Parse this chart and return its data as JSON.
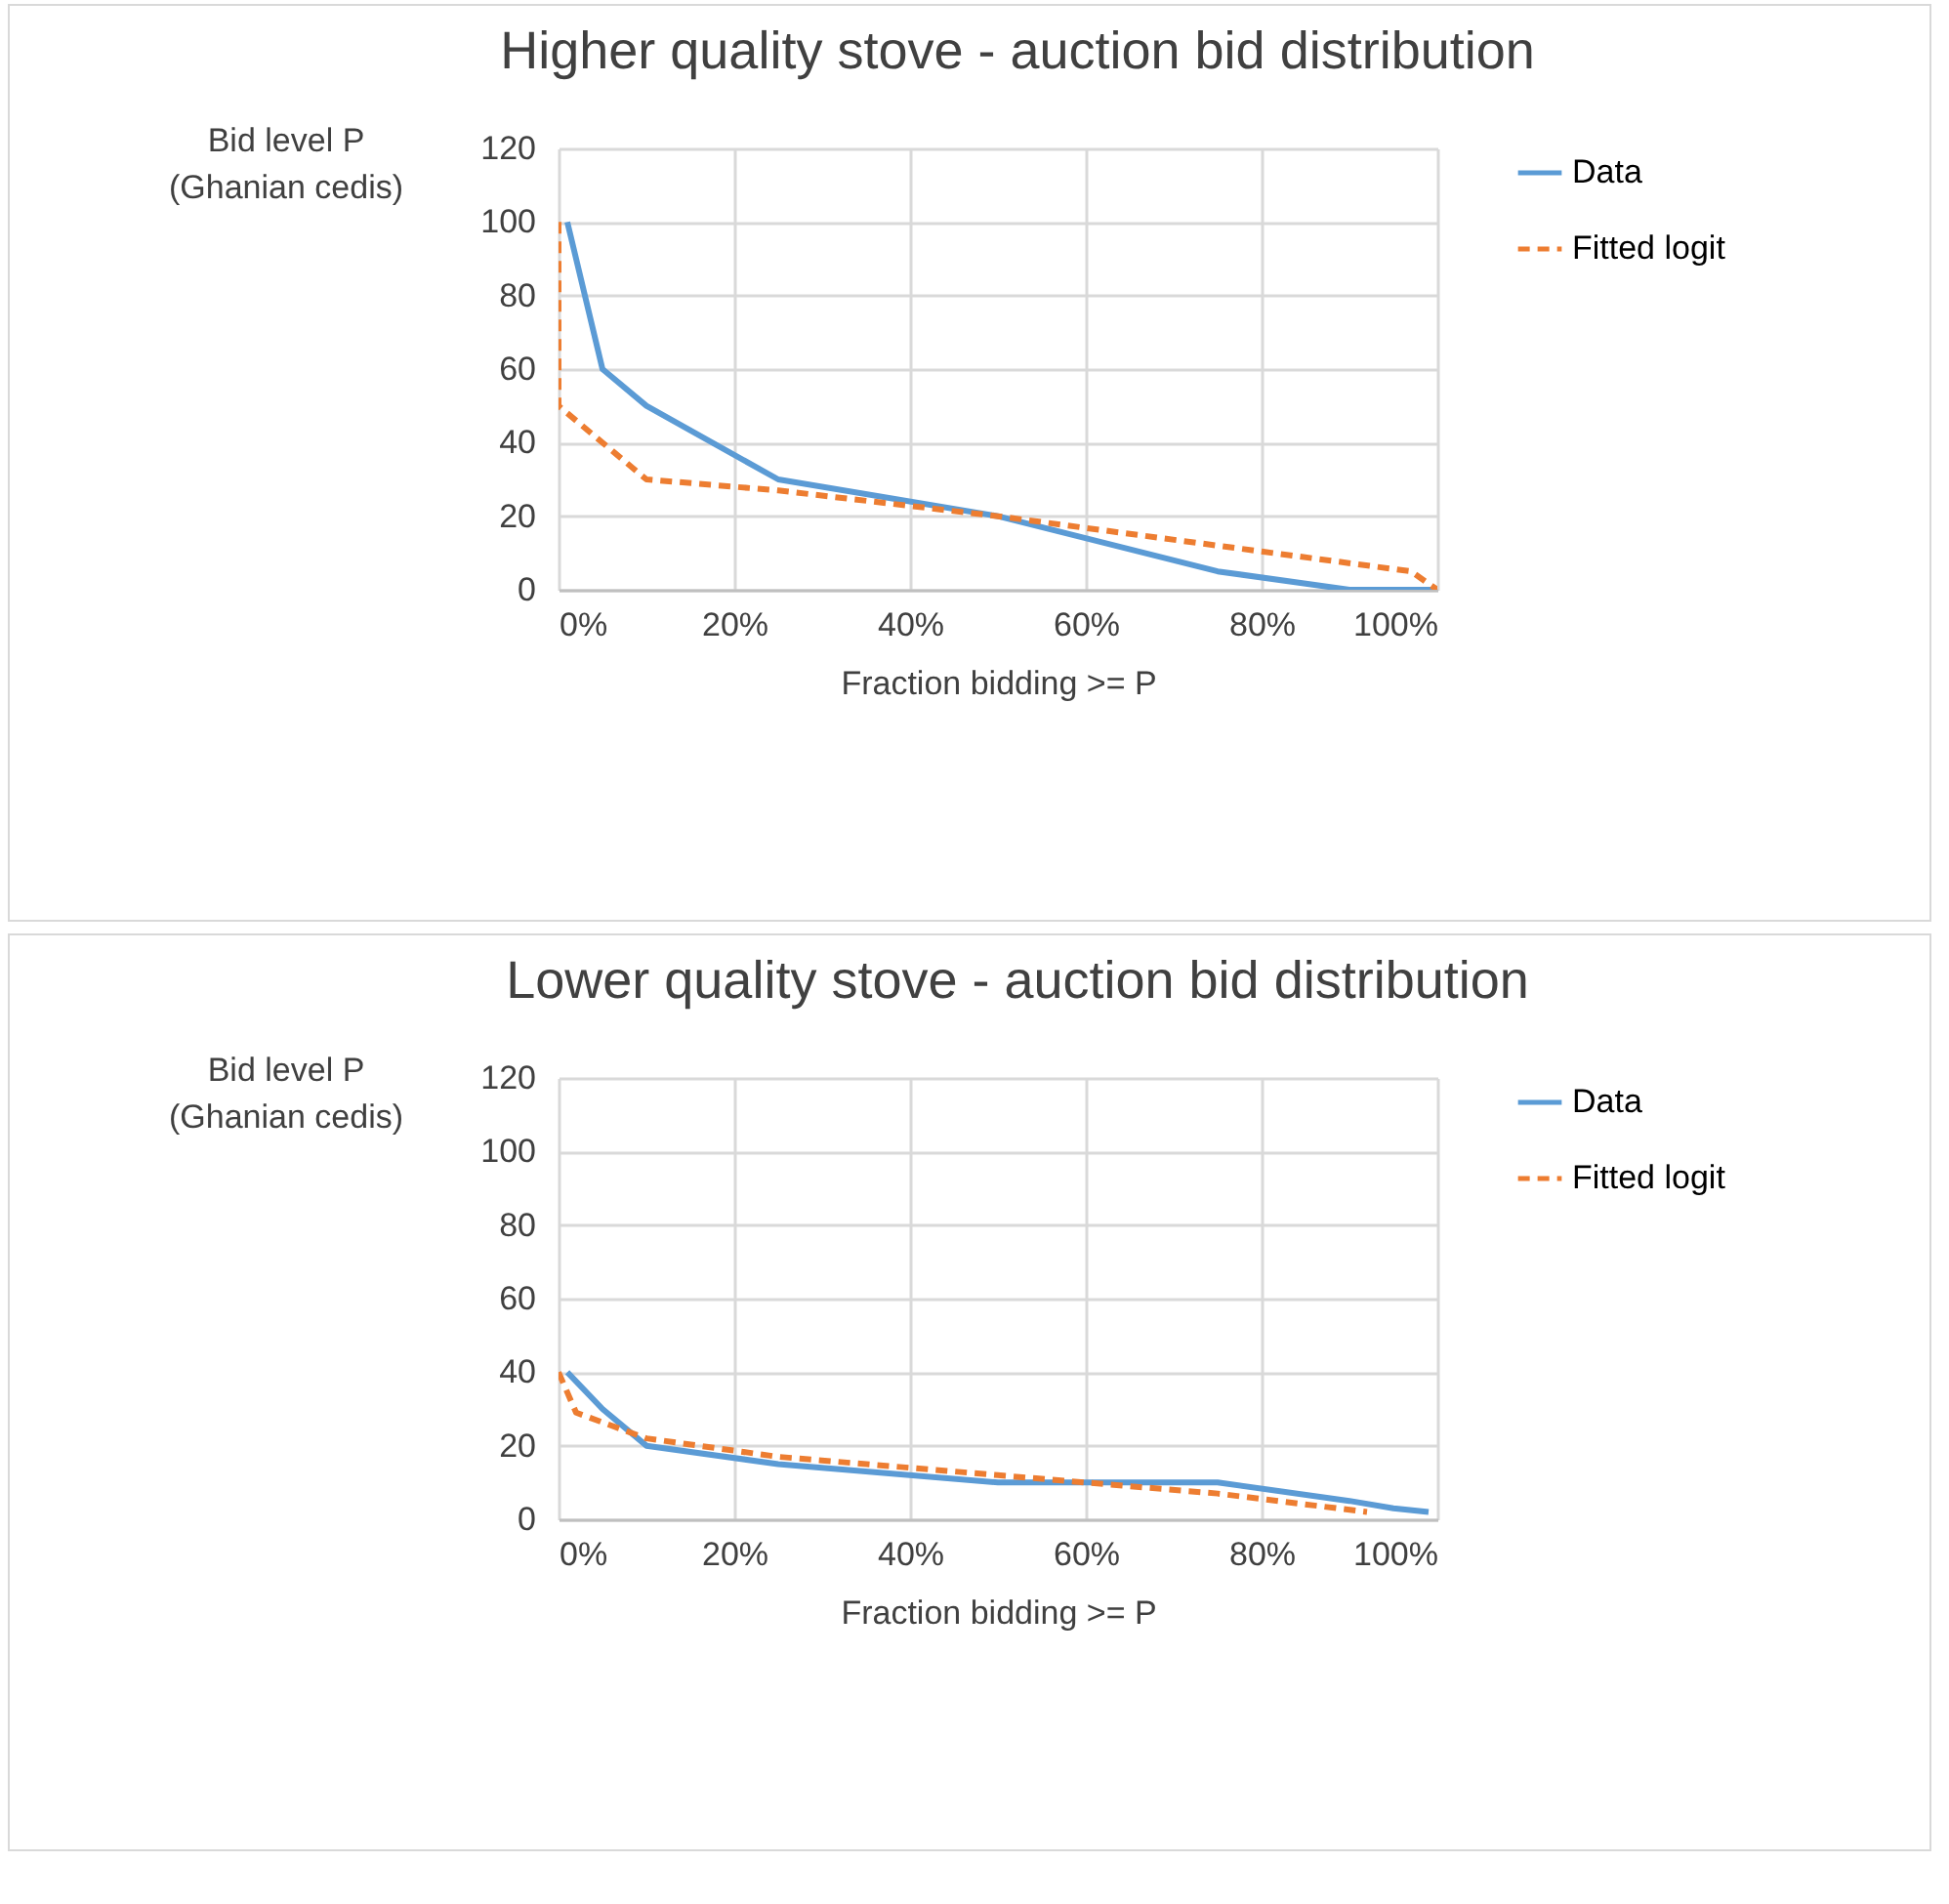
{
  "chart_data": [
    {
      "type": "line",
      "title": "Higher quality stove - auction bid distribution",
      "xlabel": "Fraction bidding >= P",
      "ylabel": "Bid level P\n(Ghanian cedis)",
      "xlim": [
        0,
        100
      ],
      "xticks": [
        {
          "value": 0,
          "label": "0%"
        },
        {
          "value": 20,
          "label": "20%"
        },
        {
          "value": 40,
          "label": "40%"
        },
        {
          "value": 60,
          "label": "60%"
        },
        {
          "value": 80,
          "label": "80%"
        },
        {
          "value": 100,
          "label": "100%"
        }
      ],
      "ylim": [
        0,
        120
      ],
      "yticks": [
        0,
        20,
        40,
        60,
        80,
        100,
        120
      ],
      "grid": true,
      "legend": "right",
      "series": [
        {
          "name": "Data",
          "color": "#5b9bd5",
          "line_style": "solid",
          "x": [
            1,
            5,
            10,
            25,
            50,
            75,
            90,
            100
          ],
          "values": [
            100,
            60,
            50,
            30,
            20,
            5,
            0,
            0
          ]
        },
        {
          "name": "Fitted logit",
          "color": "#ed7d31",
          "line_style": "dashed",
          "x": [
            0,
            0,
            10,
            25,
            50,
            75,
            97,
            100
          ],
          "values": [
            100,
            50,
            30,
            27,
            20,
            12,
            5,
            0
          ]
        }
      ]
    },
    {
      "type": "line",
      "title": "Lower quality stove - auction bid distribution",
      "xlabel": "Fraction bidding >= P",
      "ylabel": "Bid level P\n(Ghanian cedis)",
      "xlim": [
        0,
        100
      ],
      "xticks": [
        {
          "value": 0,
          "label": "0%"
        },
        {
          "value": 20,
          "label": "20%"
        },
        {
          "value": 40,
          "label": "40%"
        },
        {
          "value": 60,
          "label": "60%"
        },
        {
          "value": 80,
          "label": "80%"
        },
        {
          "value": 100,
          "label": "100%"
        }
      ],
      "ylim": [
        0,
        120
      ],
      "yticks": [
        0,
        20,
        40,
        60,
        80,
        100,
        120
      ],
      "grid": true,
      "legend": "right",
      "series": [
        {
          "name": "Data",
          "color": "#5b9bd5",
          "line_style": "solid",
          "x": [
            1,
            5,
            10,
            25,
            50,
            75,
            90,
            95,
            99
          ],
          "values": [
            40,
            30,
            20,
            15,
            10,
            10,
            5,
            3,
            2
          ]
        },
        {
          "name": "Fitted logit",
          "color": "#ed7d31",
          "line_style": "dashed",
          "x": [
            0,
            2,
            10,
            25,
            50,
            75,
            92
          ],
          "values": [
            40,
            29,
            22,
            17,
            12,
            7,
            2
          ]
        }
      ]
    }
  ]
}
